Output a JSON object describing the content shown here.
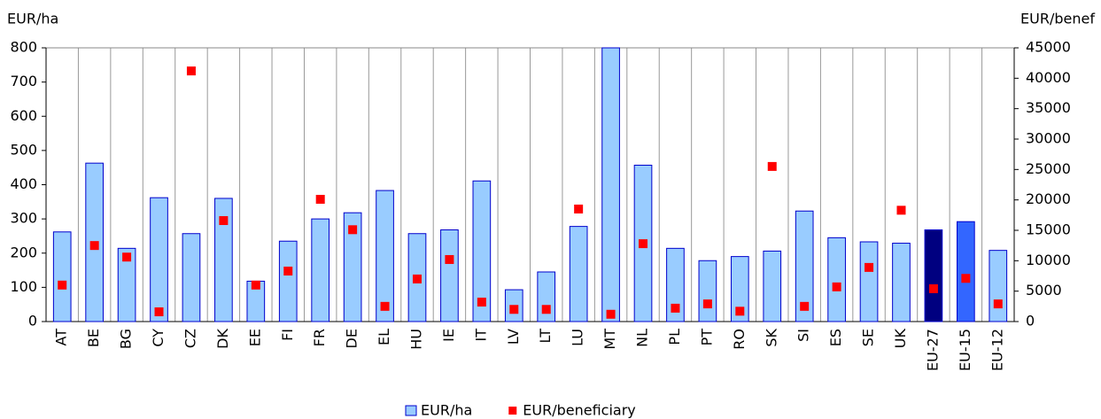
{
  "chart_data": {
    "type": "bar",
    "y_label": "EUR/ha",
    "y2_label": "EUR/benef",
    "categories": [
      "AT",
      "BE",
      "BG",
      "CY",
      "CZ",
      "DK",
      "EE",
      "FI",
      "FR",
      "DE",
      "EL",
      "HU",
      "IE",
      "IT",
      "LV",
      "LT",
      "LU",
      "MT",
      "NL",
      "PL",
      "PT",
      "RO",
      "SK",
      "SI",
      "ES",
      "SE",
      "UK",
      "EU-27",
      "EU-15",
      "EU-12"
    ],
    "series": [
      {
        "name": "EUR/ha",
        "type": "bar",
        "color": "#99ccff",
        "edge_color": "#0000cc",
        "colors": [
          "#99ccff",
          "#99ccff",
          "#99ccff",
          "#99ccff",
          "#99ccff",
          "#99ccff",
          "#99ccff",
          "#99ccff",
          "#99ccff",
          "#99ccff",
          "#99ccff",
          "#99ccff",
          "#99ccff",
          "#99ccff",
          "#99ccff",
          "#99ccff",
          "#99ccff",
          "#99ccff",
          "#99ccff",
          "#99ccff",
          "#99ccff",
          "#99ccff",
          "#99ccff",
          "#99ccff",
          "#99ccff",
          "#99ccff",
          "#99ccff",
          "#000080",
          "#3366ff",
          "#99ccff"
        ],
        "values": [
          262,
          463,
          214,
          362,
          257,
          360,
          118,
          235,
          300,
          318,
          383,
          257,
          268,
          411,
          93,
          145,
          278,
          800,
          457,
          214,
          178,
          190,
          206,
          323,
          245,
          233,
          229,
          268,
          292,
          208
        ]
      },
      {
        "name": "EUR/beneficiary",
        "type": "scatter",
        "axis": "y2",
        "color": "#ff0000",
        "values": [
          6000,
          12500,
          10600,
          1600,
          41200,
          16600,
          6000,
          8300,
          20100,
          15100,
          2500,
          7000,
          10200,
          3200,
          2000,
          2000,
          18500,
          1200,
          12800,
          2200,
          2900,
          1700,
          25500,
          2500,
          5700,
          8900,
          18300,
          5400,
          7100,
          2900
        ]
      }
    ],
    "ylim": [
      0,
      800
    ],
    "yticks": [
      0,
      100,
      200,
      300,
      400,
      500,
      600,
      700,
      800
    ],
    "y2lim": [
      0,
      45000
    ],
    "y2ticks": [
      0,
      5000,
      10000,
      15000,
      20000,
      25000,
      30000,
      35000,
      40000,
      45000
    ],
    "grid": true
  }
}
